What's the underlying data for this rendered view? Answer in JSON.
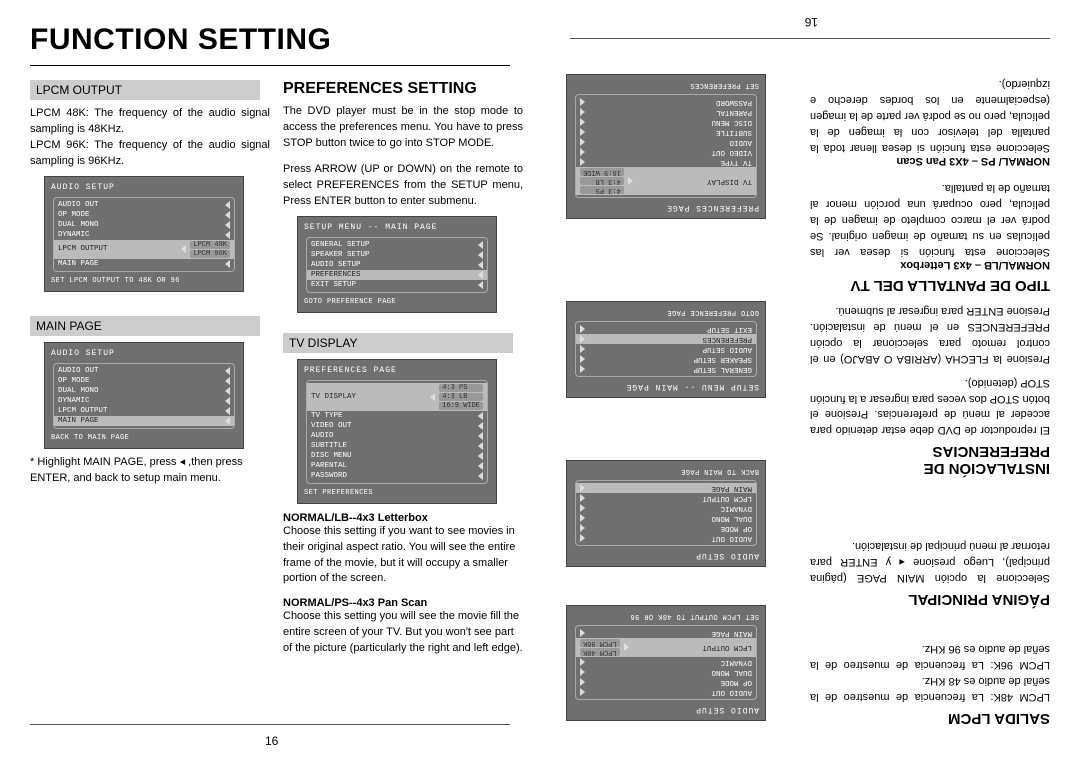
{
  "left": {
    "title": "FUNCTION SETTING",
    "lpcm": {
      "header": "LPCM OUTPUT",
      "p1": "LPCM 48K: The frequency of the audio signal sampling is 48KHz.",
      "p2": "LPCM 96K: The frequency of the audio signal sampling is 96KHz."
    },
    "osd1": {
      "title": "AUDIO SETUP",
      "rows": [
        {
          "lbl": "AUDIO OUT"
        },
        {
          "lbl": "OP MODE"
        },
        {
          "lbl": "DUAL MONO"
        },
        {
          "lbl": "DYNAMIC"
        },
        {
          "lbl": "LPCM OUTPUT",
          "vals": [
            "LPCM 48K",
            "LPCM 96K"
          ],
          "hi": true
        },
        {
          "lbl": "MAIN PAGE"
        }
      ],
      "foot": "SET LPCM OUTPUT TO 48K OR 96"
    },
    "mainpage": {
      "header": "MAIN PAGE",
      "note": "* Highlight MAIN PAGE, press  ◂ ,then press ENTER, and back to setup main menu."
    },
    "osd2": {
      "title": "AUDIO SETUP",
      "rows": [
        {
          "lbl": "AUDIO OUT"
        },
        {
          "lbl": "OP MODE"
        },
        {
          "lbl": "DUAL MONO"
        },
        {
          "lbl": "DYNAMIC"
        },
        {
          "lbl": "LPCM OUTPUT"
        },
        {
          "lbl": "MAIN PAGE",
          "hi": true
        }
      ],
      "foot": "BACK TO MAIN PAGE"
    },
    "prefs": {
      "heading": "PREFERENCES SETTING",
      "p1": "The DVD player must be in the stop mode to access the preferences menu. You have to press STOP button twice to go into STOP MODE.",
      "p2": "Press ARROW (UP or DOWN) on the remote to select PREFERENCES from the SETUP menu, Press ENTER button to enter submenu."
    },
    "osd3": {
      "title": "SETUP MENU -- MAIN PAGE",
      "rows": [
        {
          "lbl": "GENERAL SETUP"
        },
        {
          "lbl": "SPEAKER SETUP"
        },
        {
          "lbl": "AUDIO SETUP"
        },
        {
          "lbl": "PREFERENCES",
          "hi": true
        },
        {
          "lbl": "EXIT SETUP"
        }
      ],
      "foot": "GOTO PREFERENCE PAGE"
    },
    "tvdisp": {
      "header": "TV DISPLAY"
    },
    "osd4": {
      "title": "PREFERENCES PAGE",
      "rows": [
        {
          "lbl": "TV DISPLAY",
          "vals": [
            "4:3 PS",
            "4:3 LB",
            "16:9 WIDE"
          ],
          "hi": true
        },
        {
          "lbl": "TV TYPE"
        },
        {
          "lbl": "VIDEO OUT"
        },
        {
          "lbl": "AUDIO"
        },
        {
          "lbl": "SUBTITLE"
        },
        {
          "lbl": "DISC MENU"
        },
        {
          "lbl": "PARENTAL"
        },
        {
          "lbl": "PASSWORD"
        }
      ],
      "foot": "SET PREFERENCES"
    },
    "lb": {
      "h": "NORMAL/LB--4x3 Letterbox",
      "p": "Choose this setting if you want to see movies in their original aspect ratio. You will see the entire frame of the movie, but it will occupy a smaller portion of the screen."
    },
    "ps": {
      "h": "NORMAL/PS--4x3 Pan Scan",
      "p": "Choose this setting you will see the movie fill the entire screen of your TV. But you won't see part of the picture (particularly the right and left edge)."
    },
    "pagenum": "16"
  },
  "right": {
    "salida": {
      "h": "SALIDA LPCM",
      "p1": "LPCM 48K: La frecuencia de muestreo de la señal de audio es 48 KHz.",
      "p2": "LPCM 96K: La frecuencia de muestreo de la señal de audio es 96 KHz."
    },
    "osdA": {
      "title": "AUDIO SETUP",
      "rows": [
        {
          "lbl": "AUDIO OUT"
        },
        {
          "lbl": "OP MODE"
        },
        {
          "lbl": "DUAL MONO"
        },
        {
          "lbl": "DYNAMIC"
        },
        {
          "lbl": "LPCM OUTPUT",
          "vals": [
            "LPCM 48K",
            "LPCM 96K"
          ],
          "hi": true
        },
        {
          "lbl": "MAIN PAGE"
        }
      ],
      "foot": "SET LPCM OUTPUT TO 48K OR 96"
    },
    "pagina": {
      "h": "PÁGINA PRINCIPAL",
      "p": "Seleccione la opción MAIN PAGE (página principal), Luego presione ◂ y ENTER para retornar al menú principal de instalación."
    },
    "osdB": {
      "title": "AUDIO SETUP",
      "rows": [
        {
          "lbl": "AUDIO OUT"
        },
        {
          "lbl": "OP MODE"
        },
        {
          "lbl": "DUAL MONO"
        },
        {
          "lbl": "DYNAMIC"
        },
        {
          "lbl": "LPCM OUTPUT"
        },
        {
          "lbl": "MAIN PAGE",
          "hi": true
        }
      ],
      "foot": "BACK TO MAIN PAGE"
    },
    "instal": {
      "h": "INSTALACIÓN DE PREFERENCIAS",
      "p1": "El reproductor de DVD debe estar detenido para acceder al menú de preferencias. Presione el botón STOP dos veces para ingresar a la función STOP (detenido).",
      "p2": "Presione la FLECHA (ARRIBA O ABAJO) en el control remoto para seleccionar la opción PREFERENCES en el menú de instalación. Presione ENTER para ingresar al submenú."
    },
    "osdC": {
      "title": "SETUP MENU -- MAIN PAGE",
      "rows": [
        {
          "lbl": "GENERAL SETUP"
        },
        {
          "lbl": "SPEAKER SETUP"
        },
        {
          "lbl": "AUDIO SETUP"
        },
        {
          "lbl": "PREFERENCES",
          "hi": true
        },
        {
          "lbl": "EXIT SETUP"
        }
      ],
      "foot": "GOTO PREFERENCE PAGE"
    },
    "tipo": {
      "h": "TIPO DE PANTALLA DEL TV",
      "lbh": "NORMAL/LB – 4x3 Letterbox",
      "lbp": "Seleccione esta función si desea ver las películas en su tamaño de imagen original. Se podrá ver el marco completo de imagen de la película, pero ocupará una porción menor al tamaño de la pantalla.",
      "psh": "NORMAL/ PS – 4X3 Pan Scan",
      "psp": "Seleccione esta función si desea llenar toda la pantalla del televisor con la imagen de la película, pero no se podrá ver parte de la imagen (especialmente en los bordes derecho e izquierdo)."
    },
    "osdD": {
      "title": "PREFERENCES PAGE",
      "rows": [
        {
          "lbl": "TV DISPLAY",
          "vals": [
            "4:3 PS",
            "4:3 LB",
            "16:9 WIDE"
          ],
          "hi": true
        },
        {
          "lbl": "TV TYPE"
        },
        {
          "lbl": "VIDEO OUT"
        },
        {
          "lbl": "AUDIO"
        },
        {
          "lbl": "SUBTITLE"
        },
        {
          "lbl": "DISC MENU"
        },
        {
          "lbl": "PARENTAL"
        },
        {
          "lbl": "PASSWORD"
        }
      ],
      "foot": "SET PREFERENCES"
    },
    "pagenum": "16"
  },
  "palette": {
    "osd_bg": "#707070",
    "osd_hi": "#bbbbbb",
    "header_bg": "#cccccc"
  }
}
